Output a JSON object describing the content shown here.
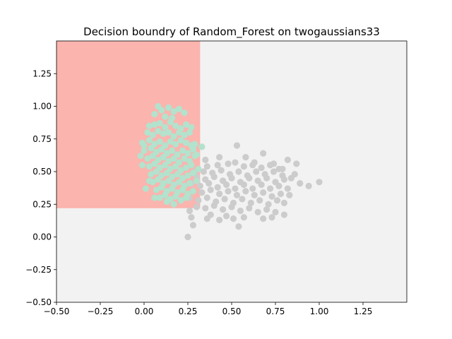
{
  "chart_data": {
    "type": "scatter",
    "title": "Decision boundry of Random_Forest on twogaussians33",
    "xlabel": "",
    "ylabel": "",
    "xlim": [
      -0.5,
      1.5
    ],
    "ylim": [
      -0.5,
      1.5
    ],
    "x_ticks": [
      "−0.50",
      "−0.25",
      "0.00",
      "0.25",
      "0.50",
      "0.75",
      "1.00",
      "1.25"
    ],
    "y_ticks": [
      "−0.50",
      "−0.25",
      "0.00",
      "0.25",
      "0.50",
      "0.75",
      "1.00",
      "1.25"
    ],
    "x_tick_values": [
      -0.5,
      -0.25,
      0,
      0.25,
      0.5,
      0.75,
      1.0,
      1.25
    ],
    "y_tick_values": [
      -0.5,
      -0.25,
      0,
      0.25,
      0.5,
      0.75,
      1.0,
      1.25
    ],
    "grid": false,
    "colors": {
      "background_region": "#f2f2f2",
      "class0_region": "#fbb4ae",
      "class0_points": "#b3e2cd",
      "class1_points": "#cccccc"
    },
    "regions": [
      {
        "class": "background",
        "x": [
          -0.5,
          1.5
        ],
        "y": [
          -0.5,
          1.5
        ]
      },
      {
        "class": "class0",
        "x": [
          -0.5,
          0.32
        ],
        "y": [
          0.22,
          1.5
        ]
      }
    ],
    "series": [
      {
        "values_xy": [
          [
            0.08,
            1.0
          ],
          [
            0.1,
            0.97
          ],
          [
            0.14,
            0.99
          ],
          [
            0.17,
            0.96
          ],
          [
            0.2,
            0.98
          ],
          [
            0.23,
            0.95
          ],
          [
            0.12,
            0.92
          ],
          [
            0.16,
            0.91
          ],
          [
            0.06,
            0.94
          ],
          [
            0.03,
            0.85
          ],
          [
            0.06,
            0.86
          ],
          [
            0.09,
            0.87
          ],
          [
            0.12,
            0.84
          ],
          [
            0.15,
            0.88
          ],
          [
            0.18,
            0.85
          ],
          [
            0.21,
            0.83
          ],
          [
            0.24,
            0.86
          ],
          [
            0.27,
            0.84
          ],
          [
            0.02,
            0.8
          ],
          [
            0.05,
            0.78
          ],
          [
            0.08,
            0.81
          ],
          [
            0.11,
            0.79
          ],
          [
            0.14,
            0.8
          ],
          [
            0.17,
            0.77
          ],
          [
            0.2,
            0.8
          ],
          [
            0.23,
            0.78
          ],
          [
            0.26,
            0.8
          ],
          [
            -0.01,
            0.72
          ],
          [
            0.03,
            0.74
          ],
          [
            0.06,
            0.71
          ],
          [
            0.09,
            0.73
          ],
          [
            0.12,
            0.7
          ],
          [
            0.15,
            0.73
          ],
          [
            0.18,
            0.71
          ],
          [
            0.21,
            0.74
          ],
          [
            0.24,
            0.72
          ],
          [
            0.27,
            0.7
          ],
          [
            0.0,
            0.66
          ],
          [
            0.04,
            0.68
          ],
          [
            0.07,
            0.65
          ],
          [
            0.1,
            0.67
          ],
          [
            0.13,
            0.64
          ],
          [
            0.16,
            0.66
          ],
          [
            0.19,
            0.63
          ],
          [
            0.22,
            0.66
          ],
          [
            0.25,
            0.64
          ],
          [
            0.28,
            0.67
          ],
          [
            0.02,
            0.6
          ],
          [
            0.05,
            0.62
          ],
          [
            0.08,
            0.59
          ],
          [
            0.11,
            0.61
          ],
          [
            0.14,
            0.58
          ],
          [
            0.17,
            0.6
          ],
          [
            0.2,
            0.57
          ],
          [
            0.23,
            0.6
          ],
          [
            0.26,
            0.58
          ],
          [
            0.29,
            0.62
          ],
          [
            -0.01,
            0.55
          ],
          [
            0.03,
            0.54
          ],
          [
            0.06,
            0.56
          ],
          [
            0.09,
            0.53
          ],
          [
            0.12,
            0.55
          ],
          [
            0.15,
            0.52
          ],
          [
            0.18,
            0.54
          ],
          [
            0.21,
            0.51
          ],
          [
            0.24,
            0.53
          ],
          [
            0.27,
            0.55
          ],
          [
            0.04,
            0.48
          ],
          [
            0.07,
            0.5
          ],
          [
            0.1,
            0.47
          ],
          [
            0.13,
            0.49
          ],
          [
            0.16,
            0.46
          ],
          [
            0.19,
            0.48
          ],
          [
            0.22,
            0.45
          ],
          [
            0.25,
            0.47
          ],
          [
            0.28,
            0.49
          ],
          [
            0.05,
            0.42
          ],
          [
            0.08,
            0.44
          ],
          [
            0.11,
            0.41
          ],
          [
            0.14,
            0.43
          ],
          [
            0.17,
            0.4
          ],
          [
            0.2,
            0.42
          ],
          [
            0.23,
            0.39
          ],
          [
            0.26,
            0.41
          ],
          [
            0.07,
            0.36
          ],
          [
            0.1,
            0.38
          ],
          [
            0.13,
            0.35
          ],
          [
            0.16,
            0.37
          ],
          [
            0.19,
            0.34
          ],
          [
            0.22,
            0.36
          ],
          [
            0.25,
            0.33
          ],
          [
            0.28,
            0.35
          ],
          [
            0.09,
            0.3
          ],
          [
            0.12,
            0.32
          ],
          [
            0.15,
            0.29
          ],
          [
            0.18,
            0.31
          ],
          [
            0.21,
            0.28
          ],
          [
            0.24,
            0.3
          ],
          [
            0.17,
            0.25
          ],
          [
            0.13,
            0.27
          ],
          [
            -0.02,
            0.62
          ],
          [
            0.0,
            0.7
          ],
          [
            0.3,
            0.63
          ],
          [
            0.29,
            0.71
          ],
          [
            0.33,
            0.69
          ],
          [
            0.31,
            0.52
          ],
          [
            0.3,
            0.43
          ],
          [
            0.03,
            0.43
          ],
          [
            0.06,
            0.3
          ],
          [
            0.01,
            0.37
          ]
        ]
      },
      {
        "values_xy": [
          [
            0.53,
            0.7
          ],
          [
            0.68,
            0.64
          ],
          [
            0.87,
            0.56
          ],
          [
            0.82,
            0.59
          ],
          [
            0.35,
            0.59
          ],
          [
            0.43,
            0.61
          ],
          [
            0.58,
            0.61
          ],
          [
            0.63,
            0.57
          ],
          [
            0.74,
            0.56
          ],
          [
            0.36,
            0.54
          ],
          [
            0.42,
            0.55
          ],
          [
            0.48,
            0.56
          ],
          [
            0.52,
            0.57
          ],
          [
            0.57,
            0.54
          ],
          [
            0.62,
            0.55
          ],
          [
            0.67,
            0.53
          ],
          [
            0.72,
            0.55
          ],
          [
            0.77,
            0.52
          ],
          [
            0.79,
            0.52
          ],
          [
            0.86,
            0.48
          ],
          [
            0.29,
            0.5
          ],
          [
            0.34,
            0.5
          ],
          [
            0.39,
            0.49
          ],
          [
            0.44,
            0.51
          ],
          [
            0.49,
            0.48
          ],
          [
            0.54,
            0.5
          ],
          [
            0.59,
            0.47
          ],
          [
            0.64,
            0.5
          ],
          [
            0.69,
            0.48
          ],
          [
            0.74,
            0.5
          ],
          [
            0.79,
            0.47
          ],
          [
            0.84,
            0.45
          ],
          [
            0.3,
            0.46
          ],
          [
            0.35,
            0.44
          ],
          [
            0.4,
            0.46
          ],
          [
            0.45,
            0.43
          ],
          [
            0.5,
            0.45
          ],
          [
            0.55,
            0.42
          ],
          [
            0.6,
            0.45
          ],
          [
            0.65,
            0.43
          ],
          [
            0.7,
            0.45
          ],
          [
            0.75,
            0.42
          ],
          [
            0.8,
            0.44
          ],
          [
            0.89,
            0.41
          ],
          [
            0.27,
            0.41
          ],
          [
            0.32,
            0.39
          ],
          [
            0.37,
            0.41
          ],
          [
            0.42,
            0.38
          ],
          [
            0.47,
            0.4
          ],
          [
            0.52,
            0.37
          ],
          [
            0.57,
            0.4
          ],
          [
            0.62,
            0.37
          ],
          [
            0.67,
            0.4
          ],
          [
            0.72,
            0.37
          ],
          [
            0.77,
            0.39
          ],
          [
            0.82,
            0.37
          ],
          [
            0.94,
            0.39
          ],
          [
            1.0,
            0.42
          ],
          [
            0.28,
            0.35
          ],
          [
            0.33,
            0.34
          ],
          [
            0.38,
            0.36
          ],
          [
            0.43,
            0.33
          ],
          [
            0.48,
            0.35
          ],
          [
            0.53,
            0.32
          ],
          [
            0.58,
            0.35
          ],
          [
            0.63,
            0.32
          ],
          [
            0.68,
            0.34
          ],
          [
            0.73,
            0.31
          ],
          [
            0.78,
            0.33
          ],
          [
            0.83,
            0.32
          ],
          [
            0.26,
            0.3
          ],
          [
            0.31,
            0.28
          ],
          [
            0.36,
            0.3
          ],
          [
            0.41,
            0.27
          ],
          [
            0.46,
            0.29
          ],
          [
            0.51,
            0.26
          ],
          [
            0.56,
            0.29
          ],
          [
            0.61,
            0.26
          ],
          [
            0.66,
            0.28
          ],
          [
            0.71,
            0.25
          ],
          [
            0.76,
            0.28
          ],
          [
            0.8,
            0.26
          ],
          [
            0.3,
            0.23
          ],
          [
            0.35,
            0.22
          ],
          [
            0.4,
            0.24
          ],
          [
            0.45,
            0.21
          ],
          [
            0.5,
            0.23
          ],
          [
            0.55,
            0.2
          ],
          [
            0.6,
            0.22
          ],
          [
            0.65,
            0.19
          ],
          [
            0.7,
            0.21
          ],
          [
            0.75,
            0.19
          ],
          [
            0.26,
            0.2
          ],
          [
            0.38,
            0.17
          ],
          [
            0.47,
            0.16
          ],
          [
            0.57,
            0.15
          ],
          [
            0.68,
            0.14
          ],
          [
            0.8,
            0.17
          ],
          [
            0.43,
            0.13
          ],
          [
            0.51,
            0.14
          ],
          [
            0.27,
            0.15
          ],
          [
            0.28,
            0.09
          ],
          [
            0.25,
            0.0
          ],
          [
            0.54,
            0.08
          ],
          [
            0.36,
            0.14
          ],
          [
            0.73,
            0.15
          ]
        ]
      }
    ]
  }
}
